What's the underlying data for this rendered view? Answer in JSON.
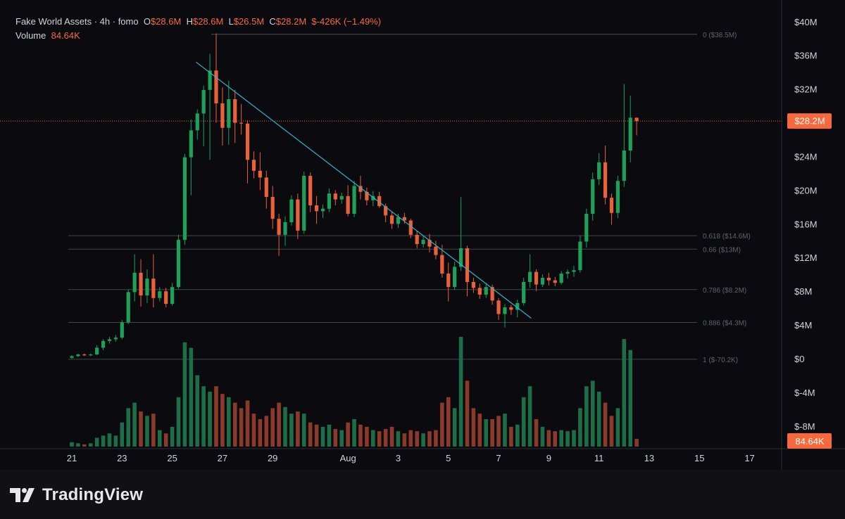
{
  "legend": {
    "symbol": "Fake World Assets · 4h · fomo",
    "o_label": "O",
    "o_value": "$28.6M",
    "h_label": "H",
    "h_value": "$28.6M",
    "l_label": "L",
    "l_value": "$26.5M",
    "c_label": "C",
    "c_value": "$28.2M",
    "change": "$-426K (−1.49%)",
    "volume_label": "Volume",
    "volume_value": "84.64K"
  },
  "brand": {
    "name": "TradingView"
  },
  "colors": {
    "up": "#1fa05a",
    "down": "#e8603c",
    "vol_up": "#1d6e47",
    "vol_down": "#8a3a2a",
    "trendline": "#2fb5d0",
    "price_tag": "#f7693c",
    "fib_line": "#3b4a46",
    "background": "#0a0a0f"
  },
  "chart_data": {
    "type": "candlestick",
    "y_axis_ticks": [
      "$40M",
      "$36M",
      "$32M",
      "$28M",
      "$24M",
      "$20M",
      "$16M",
      "$12M",
      "$8M",
      "$4M",
      "$0",
      "$-4M",
      "$-8M"
    ],
    "y_tick_values": [
      40,
      36,
      32,
      28,
      24,
      20,
      16,
      12,
      8,
      4,
      0,
      -4,
      -8
    ],
    "x_axis_ticks": [
      "21",
      "23",
      "25",
      "27",
      "29",
      "Aug",
      "3",
      "5",
      "7",
      "9",
      "11",
      "13",
      "15",
      "17"
    ],
    "x_tick_days": [
      21,
      23,
      25,
      27,
      29,
      32,
      34,
      36,
      38,
      40,
      42,
      44,
      46,
      48
    ],
    "ylim": [
      -10.5,
      41.8
    ],
    "current_price": 28.2,
    "current_price_label": "$28.2M",
    "current_volume_label": "84.64K",
    "fib_levels": [
      {
        "label": "0 ($38.5M)",
        "price": 38.5
      },
      {
        "label": "0.618 ($14.6M)",
        "price": 14.6
      },
      {
        "label": "0.66 ($13M)",
        "price": 13.0
      },
      {
        "label": "0.786 ($8.2M)",
        "price": 8.2
      },
      {
        "label": "0.886 ($4.3M)",
        "price": 4.3
      },
      {
        "label": "1 ($-70.2K)",
        "price": -0.07
      }
    ],
    "trendline": {
      "from": {
        "day": 25.95,
        "price": 35.2
      },
      "to": {
        "day": 39.3,
        "price": 4.8
      }
    },
    "volume_max": 100,
    "candles": [
      [
        21.0,
        0.1,
        0.4,
        0.0,
        0.3,
        4
      ],
      [
        21.25,
        0.3,
        0.6,
        0.2,
        0.5,
        3
      ],
      [
        21.5,
        0.5,
        0.6,
        0.3,
        0.4,
        2
      ],
      [
        21.75,
        0.4,
        0.6,
        0.3,
        0.5,
        3
      ],
      [
        22.0,
        0.5,
        1.6,
        0.4,
        1.3,
        8
      ],
      [
        22.25,
        1.3,
        2.3,
        1.0,
        2.1,
        10
      ],
      [
        22.5,
        2.1,
        2.6,
        1.8,
        2.3,
        12
      ],
      [
        22.75,
        2.3,
        2.8,
        2.0,
        2.5,
        10
      ],
      [
        23.0,
        2.5,
        4.6,
        2.3,
        4.3,
        22
      ],
      [
        23.25,
        4.3,
        8.2,
        4.1,
        7.9,
        35
      ],
      [
        23.5,
        7.9,
        12.4,
        6.8,
        10.2,
        40
      ],
      [
        23.75,
        10.2,
        11.8,
        6.2,
        7.5,
        32
      ],
      [
        24.0,
        7.5,
        10.6,
        6.6,
        9.5,
        28
      ],
      [
        24.25,
        9.5,
        12.4,
        6.1,
        7.2,
        30
      ],
      [
        24.5,
        7.2,
        8.5,
        6.8,
        8.0,
        15
      ],
      [
        24.75,
        8.0,
        8.4,
        6.1,
        6.5,
        12
      ],
      [
        25.0,
        6.5,
        9.0,
        6.3,
        8.5,
        18
      ],
      [
        25.25,
        8.5,
        14.7,
        8.3,
        14.1,
        45
      ],
      [
        25.5,
        14.1,
        24.3,
        13.5,
        23.9,
        95
      ],
      [
        25.75,
        23.9,
        28.4,
        19.4,
        27.1,
        90
      ],
      [
        26.0,
        27.1,
        29.6,
        26.0,
        29.1,
        65
      ],
      [
        26.25,
        29.1,
        32.4,
        25.2,
        31.9,
        55
      ],
      [
        26.5,
        31.9,
        36.2,
        23.6,
        34.2,
        50
      ],
      [
        26.75,
        34.2,
        38.6,
        28.0,
        30.3,
        55
      ],
      [
        27.0,
        30.3,
        32.2,
        25.3,
        27.4,
        48
      ],
      [
        27.25,
        27.4,
        33.0,
        25.4,
        30.8,
        45
      ],
      [
        27.5,
        30.8,
        31.9,
        25.6,
        28.0,
        40
      ],
      [
        27.75,
        28.0,
        30.2,
        26.6,
        27.9,
        35
      ],
      [
        28.0,
        27.9,
        28.3,
        20.8,
        23.6,
        42
      ],
      [
        28.25,
        23.6,
        24.6,
        21.4,
        22.3,
        30
      ],
      [
        28.5,
        22.3,
        24.5,
        20.0,
        21.5,
        25
      ],
      [
        28.75,
        21.5,
        22.3,
        17.8,
        19.2,
        28
      ],
      [
        29.0,
        19.2,
        20.5,
        15.4,
        16.6,
        35
      ],
      [
        29.25,
        16.6,
        17.2,
        12.2,
        14.7,
        40
      ],
      [
        29.5,
        14.7,
        16.9,
        13.4,
        16.2,
        36
      ],
      [
        29.75,
        16.2,
        19.4,
        15.8,
        18.9,
        30
      ],
      [
        30.0,
        18.9,
        19.6,
        14.2,
        15.2,
        32
      ],
      [
        30.25,
        15.2,
        22.2,
        14.8,
        21.7,
        30
      ],
      [
        30.5,
        21.7,
        22.1,
        17.4,
        18.2,
        22
      ],
      [
        30.75,
        18.2,
        19.3,
        16.0,
        17.5,
        20
      ],
      [
        31.0,
        17.5,
        18.3,
        16.7,
        17.8,
        18
      ],
      [
        31.25,
        17.8,
        20.2,
        17.4,
        19.6,
        20
      ],
      [
        31.5,
        19.6,
        20.0,
        18.2,
        18.9,
        16
      ],
      [
        31.75,
        18.9,
        19.7,
        18.4,
        19.3,
        15
      ],
      [
        32.0,
        19.3,
        20.6,
        16.9,
        17.2,
        22
      ],
      [
        32.25,
        17.2,
        21.1,
        16.8,
        20.5,
        25
      ],
      [
        32.5,
        20.5,
        21.7,
        18.9,
        19.8,
        20
      ],
      [
        32.75,
        19.8,
        20.3,
        18.2,
        18.8,
        18
      ],
      [
        33.0,
        18.8,
        19.9,
        18.1,
        19.3,
        15
      ],
      [
        33.25,
        19.3,
        19.8,
        17.9,
        18.1,
        14
      ],
      [
        33.5,
        18.1,
        18.4,
        16.2,
        17.0,
        16
      ],
      [
        33.75,
        17.0,
        17.5,
        15.4,
        16.0,
        18
      ],
      [
        34.0,
        16.0,
        17.2,
        15.5,
        16.8,
        14
      ],
      [
        34.25,
        16.8,
        17.3,
        16.0,
        16.4,
        12
      ],
      [
        34.5,
        16.4,
        16.6,
        14.3,
        14.7,
        15
      ],
      [
        34.75,
        14.7,
        15.2,
        13.1,
        13.6,
        14
      ],
      [
        35.0,
        13.6,
        14.6,
        13.2,
        14.1,
        12
      ],
      [
        35.25,
        14.1,
        14.8,
        12.6,
        13.3,
        14
      ],
      [
        35.5,
        13.3,
        14.0,
        11.8,
        12.3,
        15
      ],
      [
        35.75,
        12.3,
        13.5,
        9.6,
        10.1,
        40
      ],
      [
        36.0,
        10.1,
        11.4,
        6.8,
        8.5,
        45
      ],
      [
        36.25,
        8.5,
        11.5,
        8.2,
        10.9,
        35
      ],
      [
        36.5,
        10.9,
        19.2,
        10.4,
        13.1,
        100
      ],
      [
        36.75,
        13.1,
        13.4,
        7.4,
        9.1,
        60
      ],
      [
        37.0,
        9.1,
        9.6,
        7.8,
        8.4,
        35
      ],
      [
        37.25,
        8.4,
        8.9,
        7.1,
        7.6,
        30
      ],
      [
        37.5,
        7.6,
        9.0,
        7.2,
        8.5,
        25
      ],
      [
        37.75,
        8.5,
        8.8,
        6.4,
        6.9,
        25
      ],
      [
        38.0,
        6.9,
        7.2,
        4.6,
        5.3,
        28
      ],
      [
        38.25,
        5.3,
        6.5,
        3.7,
        6.1,
        30
      ],
      [
        38.5,
        6.1,
        6.4,
        5.2,
        5.8,
        18
      ],
      [
        38.75,
        5.8,
        7.0,
        4.9,
        6.6,
        20
      ],
      [
        39.0,
        6.6,
        9.6,
        6.3,
        9.1,
        45
      ],
      [
        39.25,
        9.1,
        12.4,
        8.4,
        10.3,
        55
      ],
      [
        39.5,
        10.3,
        10.6,
        8.0,
        8.8,
        25
      ],
      [
        39.75,
        8.8,
        10.0,
        8.5,
        9.6,
        18
      ],
      [
        40.0,
        9.6,
        10.2,
        8.7,
        9.3,
        15
      ],
      [
        40.25,
        9.3,
        9.7,
        8.6,
        9.0,
        14
      ],
      [
        40.5,
        9.0,
        10.4,
        8.8,
        10.1,
        15
      ],
      [
        40.75,
        10.1,
        10.6,
        9.5,
        10.3,
        14
      ],
      [
        41.0,
        10.3,
        11.0,
        9.7,
        10.5,
        15
      ],
      [
        41.25,
        10.5,
        14.6,
        10.2,
        13.9,
        35
      ],
      [
        41.5,
        13.9,
        17.8,
        13.2,
        17.2,
        55
      ],
      [
        41.75,
        17.2,
        22.1,
        16.4,
        21.3,
        60
      ],
      [
        42.0,
        21.3,
        24.4,
        20.6,
        23.3,
        50
      ],
      [
        42.25,
        23.3,
        25.3,
        18.3,
        19.1,
        40
      ],
      [
        42.5,
        19.1,
        19.6,
        15.9,
        17.3,
        28
      ],
      [
        42.75,
        17.3,
        21.7,
        16.7,
        21.1,
        35
      ],
      [
        43.0,
        21.1,
        32.6,
        20.4,
        24.7,
        98
      ],
      [
        43.25,
        24.7,
        31.2,
        23.3,
        28.6,
        88
      ],
      [
        43.5,
        28.6,
        28.6,
        26.5,
        28.2,
        7
      ]
    ]
  }
}
